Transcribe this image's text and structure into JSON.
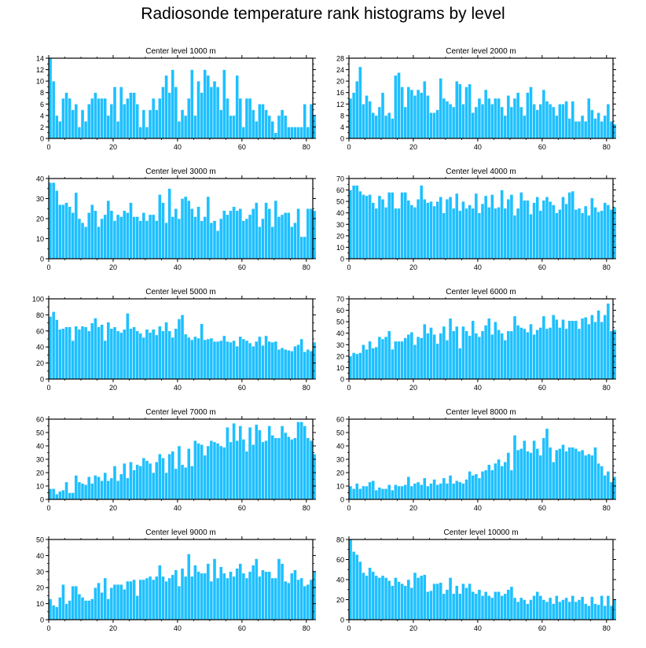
{
  "page": {
    "title": "Radiosonde temperature rank histograms by level",
    "bar_color": "#1ec0ff",
    "bar_edge": "#ffffff"
  },
  "chart_data": [
    {
      "type": "bar",
      "title": "Center level 1000 m",
      "xlim": [
        0,
        82
      ],
      "xticks": [
        0,
        20,
        40,
        60,
        80
      ],
      "ylim": [
        0,
        14
      ],
      "yticks": [
        0,
        2,
        4,
        6,
        8,
        10,
        12,
        14
      ],
      "values": [
        14,
        10,
        4,
        3,
        7,
        8,
        7,
        5,
        6,
        2,
        5,
        3,
        6,
        7,
        8,
        7,
        7,
        7,
        4,
        6,
        9,
        3,
        9,
        6,
        7,
        8,
        8,
        6,
        2,
        5,
        2,
        5,
        7,
        5,
        7,
        9,
        11,
        8,
        12,
        9,
        3,
        5,
        4,
        7,
        12,
        4,
        10,
        8,
        12,
        11,
        9,
        10,
        9,
        5,
        12,
        7,
        4,
        4,
        11,
        7,
        2,
        7,
        7,
        5,
        3,
        6,
        6,
        5,
        4,
        3,
        1,
        4,
        5,
        4,
        2,
        2,
        2,
        2,
        2,
        6,
        2,
        6,
        4
      ]
    },
    {
      "type": "bar",
      "title": "Center level 2000 m",
      "xlim": [
        0,
        82
      ],
      "xticks": [
        0,
        20,
        40,
        60,
        80
      ],
      "ylim": [
        0,
        28
      ],
      "yticks": [
        0,
        4,
        8,
        12,
        16,
        20,
        24,
        28
      ],
      "values": [
        14,
        16,
        20,
        25,
        12,
        15,
        13,
        9,
        8,
        11,
        16,
        8,
        9,
        7,
        22,
        23,
        18,
        11,
        18,
        17,
        15,
        17,
        16,
        20,
        15,
        9,
        9,
        10,
        21,
        14,
        13,
        12,
        11,
        20,
        19,
        12,
        18,
        19,
        9,
        11,
        14,
        12,
        17,
        14,
        12,
        14,
        14,
        11,
        8,
        15,
        11,
        14,
        16,
        11,
        8,
        16,
        18,
        12,
        10,
        12,
        17,
        13,
        12,
        11,
        8,
        12,
        12,
        13,
        7,
        13,
        6,
        6,
        8,
        6,
        14,
        10,
        7,
        9,
        6,
        8,
        12,
        6,
        5
      ]
    },
    {
      "type": "bar",
      "title": "Center level 3000 m",
      "xlim": [
        0,
        82
      ],
      "xticks": [
        0,
        20,
        40,
        60,
        80
      ],
      "ylim": [
        0,
        40
      ],
      "yticks": [
        0,
        10,
        20,
        30,
        40
      ],
      "values": [
        38,
        38,
        34,
        27,
        27,
        28,
        26,
        23,
        33,
        20,
        18,
        16,
        23,
        27,
        24,
        16,
        20,
        22,
        29,
        24,
        19,
        22,
        21,
        24,
        23,
        28,
        21,
        21,
        19,
        23,
        19,
        22,
        22,
        19,
        32,
        28,
        18,
        35,
        21,
        25,
        20,
        30,
        31,
        29,
        25,
        21,
        26,
        19,
        21,
        31,
        18,
        19,
        14,
        20,
        24,
        22,
        24,
        26,
        24,
        25,
        19,
        20,
        22,
        25,
        28,
        16,
        20,
        28,
        25,
        16,
        29,
        21,
        22,
        23,
        23,
        16,
        18,
        25,
        11,
        11,
        25,
        25,
        24
      ]
    },
    {
      "type": "bar",
      "title": "Center level 4000 m",
      "xlim": [
        0,
        82
      ],
      "xticks": [
        0,
        20,
        40,
        60,
        80
      ],
      "ylim": [
        0,
        70
      ],
      "yticks": [
        0,
        10,
        20,
        30,
        40,
        50,
        60,
        70
      ],
      "values": [
        60,
        64,
        64,
        59,
        56,
        55,
        56,
        49,
        44,
        55,
        52,
        45,
        58,
        58,
        44,
        44,
        58,
        58,
        51,
        47,
        45,
        52,
        64,
        52,
        49,
        50,
        46,
        50,
        54,
        40,
        52,
        54,
        44,
        57,
        42,
        50,
        44,
        47,
        44,
        57,
        40,
        48,
        55,
        45,
        56,
        44,
        45,
        60,
        44,
        52,
        56,
        38,
        44,
        58,
        51,
        51,
        39,
        49,
        54,
        42,
        51,
        54,
        50,
        47,
        40,
        43,
        54,
        48,
        58,
        59,
        43,
        44,
        40,
        46,
        38,
        53,
        45,
        41,
        42,
        49,
        47,
        43,
        45
      ]
    },
    {
      "type": "bar",
      "title": "Center level 5000 m",
      "xlim": [
        0,
        82
      ],
      "xticks": [
        0,
        20,
        40,
        60,
        80
      ],
      "ylim": [
        0,
        100
      ],
      "yticks": [
        0,
        20,
        40,
        60,
        80,
        100
      ],
      "values": [
        78,
        84,
        74,
        62,
        63,
        65,
        65,
        48,
        66,
        62,
        66,
        65,
        60,
        70,
        76,
        65,
        68,
        48,
        71,
        63,
        65,
        60,
        58,
        62,
        82,
        63,
        65,
        60,
        57,
        52,
        62,
        58,
        62,
        55,
        66,
        60,
        71,
        60,
        52,
        63,
        75,
        80,
        56,
        52,
        49,
        53,
        51,
        69,
        49,
        50,
        51,
        47,
        47,
        48,
        54,
        47,
        46,
        48,
        41,
        53,
        50,
        48,
        45,
        41,
        47,
        53,
        42,
        54,
        47,
        46,
        47,
        37,
        39,
        37,
        36,
        35,
        41,
        43,
        50,
        34,
        37,
        35,
        46
      ]
    },
    {
      "type": "bar",
      "title": "Center level 6000 m",
      "xlim": [
        0,
        82
      ],
      "xticks": [
        0,
        20,
        40,
        60,
        80
      ],
      "ylim": [
        0,
        70
      ],
      "yticks": [
        0,
        10,
        20,
        30,
        40,
        50,
        60,
        70
      ],
      "values": [
        20,
        23,
        22,
        23,
        30,
        26,
        33,
        27,
        28,
        37,
        35,
        37,
        42,
        26,
        33,
        33,
        33,
        36,
        39,
        41,
        30,
        37,
        36,
        48,
        40,
        45,
        39,
        31,
        40,
        46,
        34,
        53,
        42,
        46,
        27,
        46,
        42,
        38,
        51,
        40,
        37,
        42,
        47,
        53,
        39,
        50,
        43,
        40,
        34,
        42,
        42,
        55,
        47,
        45,
        44,
        41,
        48,
        39,
        43,
        45,
        55,
        44,
        45,
        56,
        52,
        45,
        52,
        44,
        51,
        51,
        51,
        44,
        53,
        54,
        48,
        56,
        50,
        60,
        50,
        56,
        66,
        42,
        43
      ]
    },
    {
      "type": "bar",
      "title": "Center level 7000 m",
      "xlim": [
        0,
        82
      ],
      "xticks": [
        0,
        20,
        40,
        60,
        80
      ],
      "ylim": [
        0,
        60
      ],
      "yticks": [
        0,
        10,
        20,
        30,
        40,
        50,
        60
      ],
      "values": [
        8,
        8,
        4,
        6,
        7,
        13,
        5,
        5,
        18,
        13,
        12,
        11,
        17,
        12,
        18,
        17,
        14,
        20,
        14,
        16,
        25,
        14,
        19,
        27,
        16,
        28,
        22,
        26,
        25,
        31,
        29,
        27,
        20,
        28,
        34,
        31,
        20,
        34,
        36,
        23,
        40,
        26,
        24,
        38,
        25,
        44,
        42,
        41,
        33,
        40,
        44,
        43,
        42,
        40,
        39,
        54,
        43,
        57,
        44,
        55,
        45,
        36,
        54,
        41,
        56,
        52,
        43,
        44,
        55,
        48,
        46,
        46,
        55,
        50,
        47,
        45,
        46,
        58,
        58,
        55,
        46,
        44,
        34
      ]
    },
    {
      "type": "bar",
      "title": "Center level 8000 m",
      "xlim": [
        0,
        82
      ],
      "xticks": [
        0,
        20,
        40,
        60,
        80
      ],
      "ylim": [
        0,
        60
      ],
      "yticks": [
        0,
        10,
        20,
        30,
        40,
        50,
        60
      ],
      "values": [
        10,
        8,
        12,
        8,
        10,
        10,
        13,
        14,
        7,
        9,
        8,
        8,
        11,
        7,
        11,
        10,
        10,
        11,
        17,
        10,
        12,
        13,
        11,
        16,
        10,
        12,
        15,
        11,
        12,
        16,
        12,
        18,
        12,
        14,
        13,
        12,
        15,
        21,
        18,
        19,
        16,
        21,
        22,
        26,
        22,
        27,
        30,
        25,
        28,
        35,
        22,
        48,
        37,
        38,
        44,
        36,
        35,
        44,
        38,
        33,
        46,
        53,
        39,
        28,
        37,
        38,
        41,
        36,
        39,
        39,
        38,
        36,
        37,
        33,
        34,
        33,
        39,
        27,
        25,
        18,
        21,
        13,
        17
      ]
    },
    {
      "type": "bar",
      "title": "Center level 9000 m",
      "xlim": [
        0,
        82
      ],
      "xticks": [
        0,
        20,
        40,
        60,
        80
      ],
      "ylim": [
        0,
        50
      ],
      "yticks": [
        0,
        10,
        20,
        30,
        40,
        50
      ],
      "values": [
        13,
        9,
        8,
        14,
        22,
        10,
        12,
        21,
        21,
        16,
        14,
        12,
        12,
        13,
        20,
        23,
        17,
        26,
        13,
        20,
        22,
        22,
        22,
        19,
        24,
        24,
        25,
        15,
        25,
        25,
        26,
        27,
        25,
        27,
        34,
        27,
        24,
        26,
        28,
        31,
        21,
        32,
        27,
        41,
        27,
        34,
        30,
        29,
        29,
        35,
        24,
        38,
        26,
        33,
        29,
        26,
        30,
        27,
        32,
        35,
        29,
        26,
        30,
        34,
        38,
        27,
        31,
        30,
        30,
        26,
        26,
        38,
        35,
        24,
        23,
        29,
        31,
        25,
        26,
        21,
        22,
        25,
        30
      ]
    },
    {
      "type": "bar",
      "title": "Center level 10000 m",
      "xlim": [
        0,
        82
      ],
      "xticks": [
        0,
        20,
        40,
        60,
        80
      ],
      "ylim": [
        0,
        80
      ],
      "yticks": [
        0,
        20,
        40,
        60,
        80
      ],
      "values": [
        80,
        68,
        65,
        58,
        47,
        44,
        52,
        48,
        44,
        42,
        44,
        42,
        39,
        34,
        42,
        38,
        36,
        34,
        40,
        32,
        47,
        42,
        44,
        45,
        28,
        29,
        36,
        36,
        37,
        26,
        30,
        42,
        26,
        34,
        26,
        36,
        32,
        36,
        28,
        26,
        30,
        24,
        28,
        24,
        22,
        28,
        28,
        24,
        26,
        30,
        33,
        22,
        18,
        22,
        20,
        16,
        20,
        24,
        28,
        24,
        20,
        18,
        22,
        16,
        24,
        18,
        20,
        22,
        18,
        24,
        18,
        20,
        23,
        16,
        14,
        23,
        16,
        15,
        24,
        14,
        24,
        14,
        20
      ]
    }
  ]
}
